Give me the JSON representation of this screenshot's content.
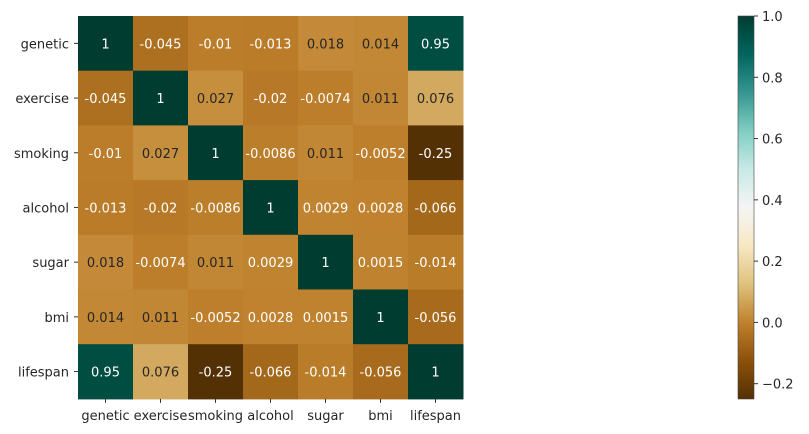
{
  "chart_data": {
    "type": "heatmap",
    "title": "",
    "xlabel": "",
    "ylabel": "",
    "x_categories": [
      "genetic",
      "exercise",
      "smoking",
      "alcohol",
      "sugar",
      "bmi",
      "lifespan"
    ],
    "y_categories": [
      "genetic",
      "exercise",
      "smoking",
      "alcohol",
      "sugar",
      "bmi",
      "lifespan"
    ],
    "values": [
      [
        1,
        -0.045,
        -0.01,
        -0.013,
        0.018,
        0.014,
        0.95
      ],
      [
        -0.045,
        1,
        0.027,
        -0.02,
        -0.0074,
        0.011,
        0.076
      ],
      [
        -0.01,
        0.027,
        1,
        -0.0086,
        0.011,
        -0.0052,
        -0.25
      ],
      [
        -0.013,
        -0.02,
        -0.0086,
        1,
        0.0029,
        0.0028,
        -0.066
      ],
      [
        0.018,
        -0.0074,
        0.011,
        0.0029,
        1,
        0.0015,
        -0.014
      ],
      [
        0.014,
        0.011,
        -0.0052,
        0.0028,
        0.0015,
        1,
        -0.056
      ],
      [
        0.95,
        0.076,
        -0.25,
        -0.066,
        -0.014,
        -0.056,
        1
      ]
    ],
    "colormap": "BrBG",
    "color_range": [
      -0.25,
      1
    ],
    "colorbar_ticks": [
      "−0.2",
      "0.0",
      "0.2",
      "0.4",
      "0.6",
      "0.8",
      "1.0"
    ],
    "colorbar_tick_values": [
      -0.2,
      0,
      0.2,
      0.4,
      0.6,
      0.8,
      1.0
    ],
    "annotations": true,
    "grid": false
  }
}
